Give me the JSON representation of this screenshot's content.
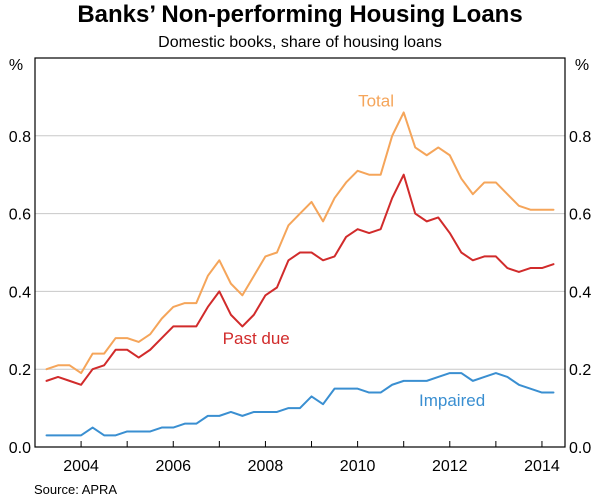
{
  "chart_data": {
    "type": "line",
    "title": "Banks’ Non-performing Housing Loans",
    "subtitle": "Domestic books, share of housing loans",
    "ylabel_left": "%",
    "ylabel_right": "%",
    "source": "Source: APRA",
    "xlim": [
      2003.0,
      2014.5
    ],
    "ylim": [
      0.0,
      1.0
    ],
    "x_ticks": [
      2004,
      2006,
      2008,
      2010,
      2012,
      2014
    ],
    "x_tick_labels": [
      "2004",
      "2006",
      "2008",
      "2010",
      "2012",
      "2014"
    ],
    "y_ticks": [
      0.0,
      0.2,
      0.4,
      0.6,
      0.8
    ],
    "y_tick_labels": [
      "0.0",
      "0.2",
      "0.4",
      "0.6",
      "0.8"
    ],
    "grid": "horizontal",
    "x": [
      2003.25,
      2003.5,
      2003.75,
      2004.0,
      2004.25,
      2004.5,
      2004.75,
      2005.0,
      2005.25,
      2005.5,
      2005.75,
      2006.0,
      2006.25,
      2006.5,
      2006.75,
      2007.0,
      2007.25,
      2007.5,
      2007.75,
      2008.0,
      2008.25,
      2008.5,
      2008.75,
      2009.0,
      2009.25,
      2009.5,
      2009.75,
      2010.0,
      2010.25,
      2010.5,
      2010.75,
      2011.0,
      2011.25,
      2011.5,
      2011.75,
      2012.0,
      2012.25,
      2012.5,
      2012.75,
      2013.0,
      2013.25,
      2013.5,
      2013.75,
      2014.0,
      2014.25
    ],
    "series": [
      {
        "name": "Total",
        "color": "#f5a55a",
        "values": [
          0.2,
          0.21,
          0.21,
          0.19,
          0.24,
          0.24,
          0.28,
          0.28,
          0.27,
          0.29,
          0.33,
          0.36,
          0.37,
          0.37,
          0.44,
          0.48,
          0.42,
          0.39,
          0.44,
          0.49,
          0.5,
          0.57,
          0.6,
          0.63,
          0.58,
          0.64,
          0.68,
          0.71,
          0.7,
          0.7,
          0.8,
          0.86,
          0.77,
          0.75,
          0.77,
          0.75,
          0.69,
          0.65,
          0.68,
          0.68,
          0.65,
          0.62,
          0.61,
          0.61,
          0.61
        ]
      },
      {
        "name": "Past due",
        "color": "#d12b2b",
        "values": [
          0.17,
          0.18,
          0.17,
          0.16,
          0.2,
          0.21,
          0.25,
          0.25,
          0.23,
          0.25,
          0.28,
          0.31,
          0.31,
          0.31,
          0.36,
          0.4,
          0.34,
          0.31,
          0.34,
          0.39,
          0.41,
          0.48,
          0.5,
          0.5,
          0.48,
          0.49,
          0.54,
          0.56,
          0.55,
          0.56,
          0.64,
          0.7,
          0.6,
          0.58,
          0.59,
          0.55,
          0.5,
          0.48,
          0.49,
          0.49,
          0.46,
          0.45,
          0.46,
          0.46,
          0.47
        ]
      },
      {
        "name": "Impaired",
        "color": "#3a8fd1",
        "values": [
          0.03,
          0.03,
          0.03,
          0.03,
          0.05,
          0.03,
          0.03,
          0.04,
          0.04,
          0.04,
          0.05,
          0.05,
          0.06,
          0.06,
          0.08,
          0.08,
          0.09,
          0.08,
          0.09,
          0.09,
          0.09,
          0.1,
          0.1,
          0.13,
          0.11,
          0.15,
          0.15,
          0.15,
          0.14,
          0.14,
          0.16,
          0.17,
          0.17,
          0.17,
          0.18,
          0.19,
          0.19,
          0.17,
          0.18,
          0.19,
          0.18,
          0.16,
          0.15,
          0.14,
          0.14
        ]
      }
    ]
  }
}
